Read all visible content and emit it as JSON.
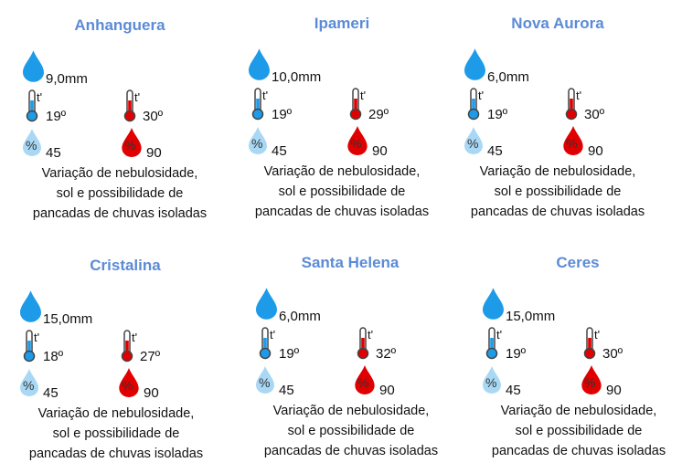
{
  "colors": {
    "title": "#5b8bd6",
    "rain_drop": "#1d9be8",
    "cold": "#1d9be8",
    "hot": "#e00000",
    "humidity_low": "#a9d8f5",
    "humidity_high": "#e00000"
  },
  "thermometer_label": "t'",
  "humidity_symbol": "%",
  "cities": [
    {
      "name": "Anhanguera",
      "precip": "9,0mm",
      "tmin": "19º",
      "tmax": "30º",
      "hmin": "45",
      "hmax": "90",
      "desc": [
        "Variação de nebulosidade,",
        "sol e possibilidade de",
        "pancadas de chuvas isoladas"
      ]
    },
    {
      "name": "Ipameri",
      "precip": "10,0mm",
      "tmin": "19º",
      "tmax": "29º",
      "hmin": "45",
      "hmax": "90",
      "desc": [
        "Variação de nebulosidade,",
        "sol e possibilidade de",
        "pancadas de chuvas isoladas"
      ]
    },
    {
      "name": "Nova Aurora",
      "precip": "6,0mm",
      "tmin": "19º",
      "tmax": "30º",
      "hmin": "45",
      "hmax": "90",
      "desc": [
        "Variação de nebulosidade,",
        "sol e possibilidade de",
        "pancadas de chuvas isoladas"
      ]
    },
    {
      "name": "Cristalina",
      "precip": "15,0mm",
      "tmin": "18º",
      "tmax": "27º",
      "hmin": "45",
      "hmax": "90",
      "desc": [
        "Variação de nebulosidade,",
        "sol e possibilidade de",
        "pancadas de chuvas isoladas"
      ]
    },
    {
      "name": "Santa Helena",
      "precip": "6,0mm",
      "tmin": "19º",
      "tmax": "32º",
      "hmin": "45",
      "hmax": "90",
      "desc": [
        "Variação de nebulosidade,",
        "sol e possibilidade de",
        "pancadas de chuvas isoladas"
      ]
    },
    {
      "name": "Ceres",
      "precip": "15,0mm",
      "tmin": "19º",
      "tmax": "30º",
      "hmin": "45",
      "hmax": "90",
      "desc": [
        "Variação de nebulosidade,",
        "sol e possibilidade de",
        "pancadas de chuvas isoladas"
      ]
    }
  ]
}
